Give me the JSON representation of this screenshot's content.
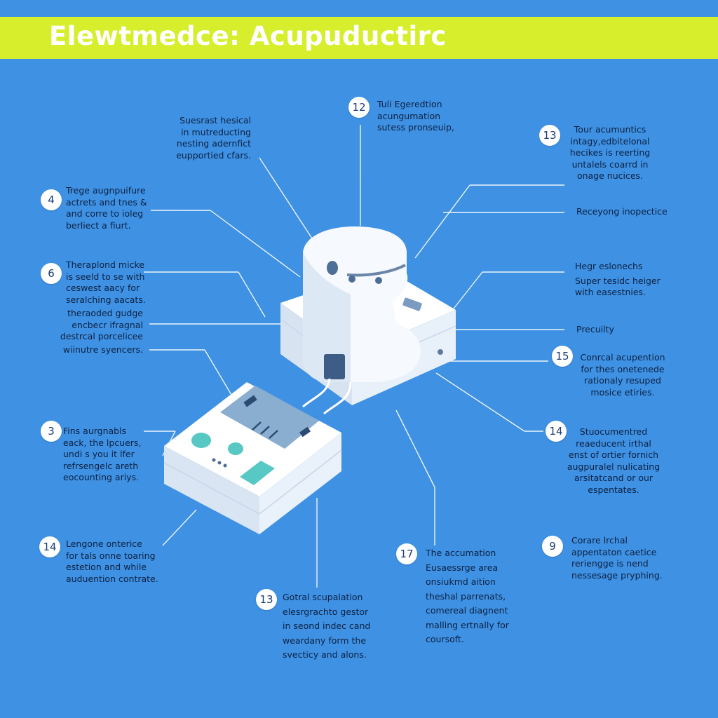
{
  "title": "Elewtmedce: Acupuductirc",
  "annotations": {
    "top_left_center": [
      "Suesrast hesical",
      "in mutreducting",
      "nesting adernfict",
      "eupportied cfars."
    ],
    "top_center": [
      "Tuli Egeredtion",
      "acungumation",
      "sutess pronseuip,"
    ],
    "top_right": [
      "Tour acumuntics",
      "intagy,edbitelonal",
      "hecikes is reerting",
      "untalels coarrd in",
      "onage nucices."
    ],
    "left_4": [
      "Trege augnpuifure",
      "actrets and tnes &",
      "and corre to ioleg",
      "berliect a fiurt."
    ],
    "left_6": [
      "Theraplond micke",
      "is seeld to se with",
      "ceswest aacy for",
      "seralching aacats."
    ],
    "left_mid": [
      "theraoded gudge",
      "encbecr ifragnal",
      "destrcal porcelicee"
    ],
    "left_single": [
      "wiinutre syencers."
    ],
    "right_label1": [
      "Receyong inopectice"
    ],
    "right_label2": [
      "Hegr eslonechs",
      "Super tesidc heiger",
      "with easestnies."
    ],
    "right_label3": [
      "Precuilty"
    ],
    "right_15": [
      "Conrcal acupention",
      "for thes onetenede",
      "rationaly resuped",
      "mosice etiries."
    ],
    "left_3": [
      "Fins aurgnabls",
      "eack, the lpcuers,",
      "undi s you it lfer",
      "refrsengelc areth",
      "eocounting ariys."
    ],
    "right_14": [
      "Stuocumentred",
      "reaeducent irthal",
      "enst of ortier fornich",
      "augpuralel nulicating",
      "arsitatcand or our",
      "espentates."
    ],
    "left_14": [
      "Lengone onterice",
      "for tals onne toaring",
      "estetion and while",
      "auduention contrate."
    ],
    "bottom_13": [
      "Gotral scupalation",
      "elesrgrachto gestor",
      "in seond indec cand",
      "weardany form the",
      "svecticy and alons."
    ],
    "bottom_17": [
      "The accumation",
      "Eusaessrge area",
      "onsiukmd aition",
      "theshal parrenats,",
      "comereal diagnent",
      "malling ertnally for",
      "coursoft."
    ],
    "right_9": [
      "Corare lrchal",
      "appentaton caetice",
      "reriengge is nend",
      "nessesage pryphing."
    ]
  },
  "badges": {
    "b12": "12",
    "b13a": "13",
    "b4": "4",
    "b6": "6",
    "b15": "15",
    "b3": "3",
    "b14a": "14",
    "b14b": "14",
    "b17": "17",
    "b9": "9",
    "b13b": "13"
  },
  "colors": {
    "background": "#3f91e3",
    "banner": "#d7ee2c",
    "device_white": "#f3f7fc",
    "screen": "#8aaecf",
    "teal_button": "#58c8c5"
  }
}
